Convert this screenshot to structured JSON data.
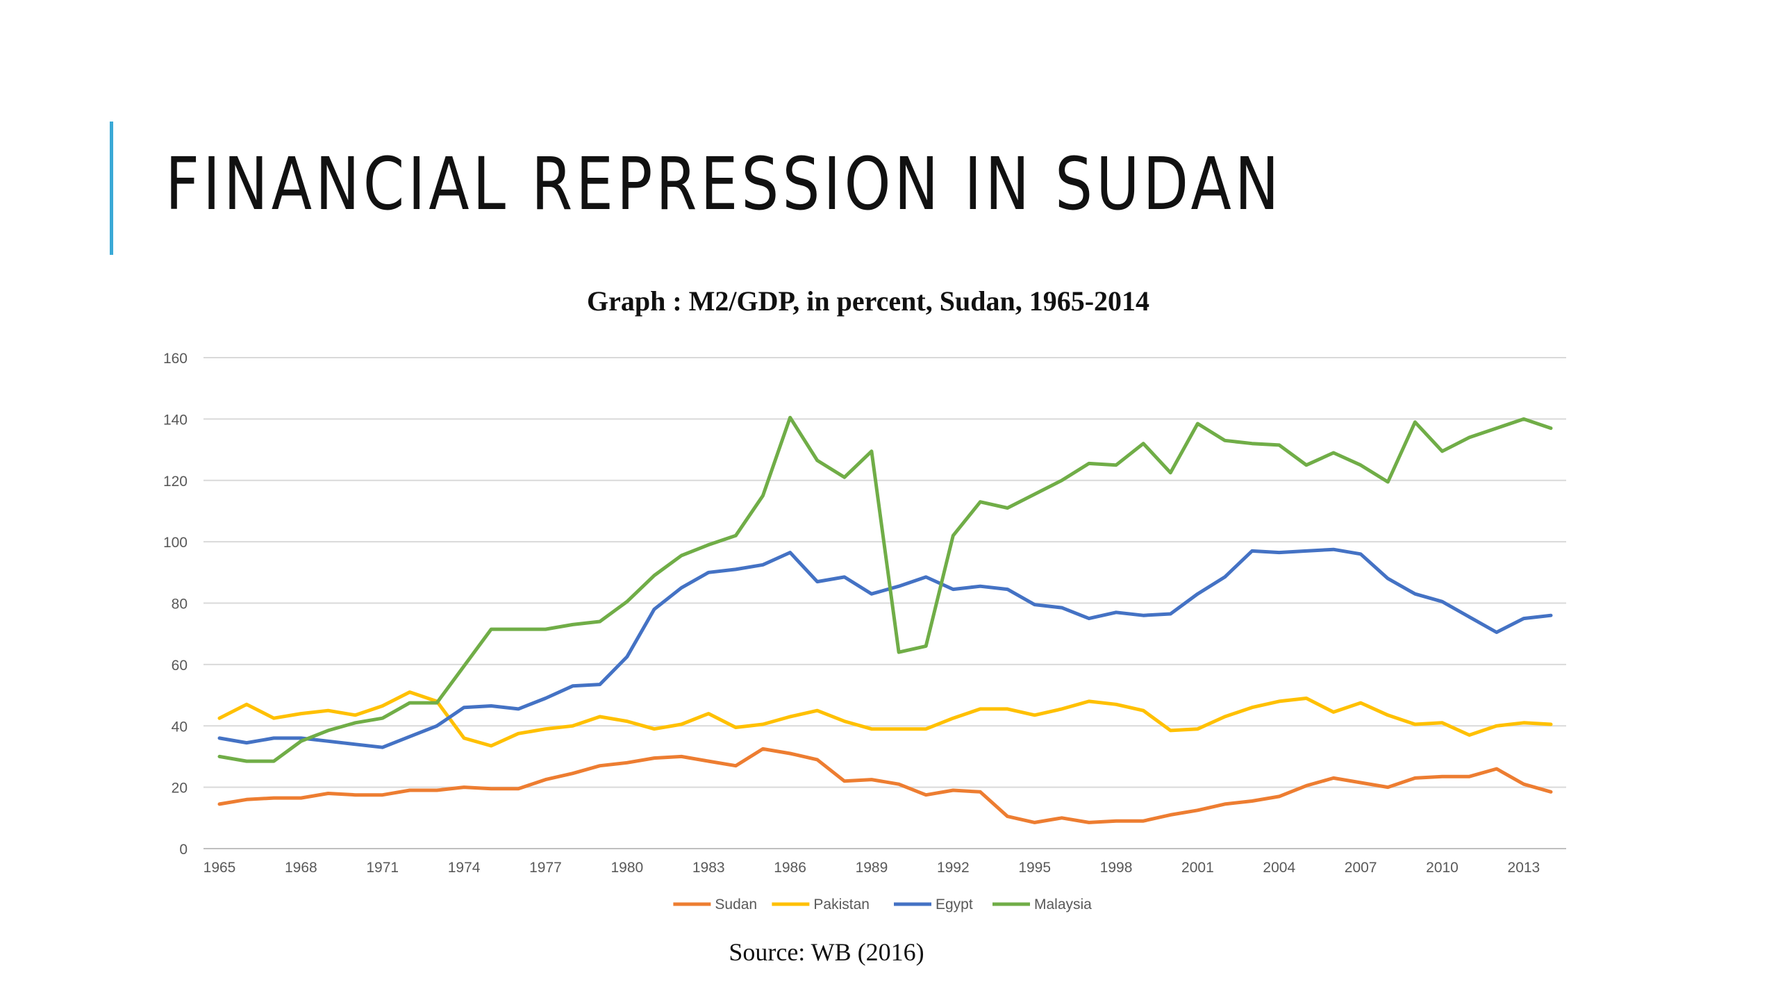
{
  "slide": {
    "title": "FINANCIAL REPRESSION IN SUDAN",
    "accent_color": "#3aa9d6"
  },
  "chart_title": "Graph : M2/GDP, in percent, Sudan, 1965-2014",
  "source": "Source: WB (2016)",
  "chart_data": {
    "type": "line",
    "title": "Graph : M2/GDP, in percent, Sudan, 1965-2014",
    "xlabel": "",
    "ylabel": "",
    "xlim": [
      1965,
      2014
    ],
    "ylim": [
      0,
      160
    ],
    "yticks": [
      0,
      20,
      40,
      60,
      80,
      100,
      120,
      140,
      160
    ],
    "xticks": [
      1965,
      1968,
      1971,
      1974,
      1977,
      1980,
      1983,
      1986,
      1989,
      1992,
      1995,
      1998,
      2001,
      2004,
      2007,
      2010,
      2013
    ],
    "grid": "horizontal",
    "legend": "bottom",
    "x": [
      1965,
      1966,
      1967,
      1968,
      1969,
      1970,
      1971,
      1972,
      1973,
      1974,
      1975,
      1976,
      1977,
      1978,
      1979,
      1980,
      1981,
      1982,
      1983,
      1984,
      1985,
      1986,
      1987,
      1988,
      1989,
      1990,
      1991,
      1992,
      1993,
      1994,
      1995,
      1996,
      1997,
      1998,
      1999,
      2000,
      2001,
      2002,
      2003,
      2004,
      2005,
      2006,
      2007,
      2008,
      2009,
      2010,
      2011,
      2012,
      2013,
      2014
    ],
    "series": [
      {
        "name": "Sudan",
        "color": "#ed7d31",
        "values": [
          14.5,
          16,
          16.5,
          16.5,
          18,
          17.5,
          17.5,
          19,
          19,
          20,
          19.5,
          19.5,
          22.5,
          24.5,
          27,
          28,
          29.5,
          30,
          28.5,
          27,
          32.5,
          31,
          29,
          22,
          22.5,
          21,
          17.5,
          19,
          18.5,
          10.5,
          8.5,
          10,
          8.5,
          9,
          9,
          11,
          12.5,
          14.5,
          15.5,
          17,
          20.5,
          23,
          21.5,
          20,
          23,
          23.5,
          23.5,
          26,
          21,
          18.5
        ]
      },
      {
        "name": "Pakistan",
        "color": "#ffc000",
        "values": [
          42.5,
          47,
          42.5,
          44,
          45,
          43.5,
          46.5,
          51,
          48,
          36,
          33.5,
          37.5,
          39,
          40,
          43,
          41.5,
          39,
          40.5,
          44,
          39.5,
          40.5,
          43,
          45,
          41.5,
          39,
          39,
          39,
          42.5,
          45.5,
          45.5,
          43.5,
          45.5,
          48,
          47,
          45,
          38.5,
          39,
          43,
          46,
          48,
          49,
          44.5,
          47.5,
          43.5,
          40.5,
          41,
          37,
          40,
          41,
          40.5
        ]
      },
      {
        "name": "Egypt",
        "color": "#4472c4",
        "values": [
          36,
          34.5,
          36,
          36,
          35,
          34,
          33,
          36.5,
          40,
          46,
          46.5,
          45.5,
          49,
          53,
          53.5,
          62.5,
          78,
          85,
          90,
          91,
          92.5,
          96.5,
          87,
          88.5,
          83,
          85.5,
          88.5,
          84.5,
          85.5,
          84.5,
          79.5,
          78.5,
          75,
          77,
          76,
          76.5,
          83,
          88.5,
          97,
          96.5,
          97,
          97.5,
          96,
          88,
          83,
          80.5,
          75.5,
          70.5,
          75,
          76
        ]
      },
      {
        "name": "Malaysia",
        "color": "#70ad47",
        "values": [
          30,
          28.5,
          28.5,
          35,
          38.5,
          41,
          42.5,
          47.5,
          47.5,
          59.5,
          71.5,
          71.5,
          71.5,
          73,
          74,
          80.5,
          89,
          95.5,
          99,
          102,
          115,
          140.5,
          126.5,
          121,
          129.5,
          64,
          66,
          102,
          113,
          111,
          115.5,
          120,
          125.5,
          125,
          132,
          122.5,
          138.5,
          133,
          132,
          131.5,
          125,
          129,
          125,
          119.5,
          139,
          129.5,
          134,
          137,
          140,
          137
        ]
      }
    ]
  }
}
